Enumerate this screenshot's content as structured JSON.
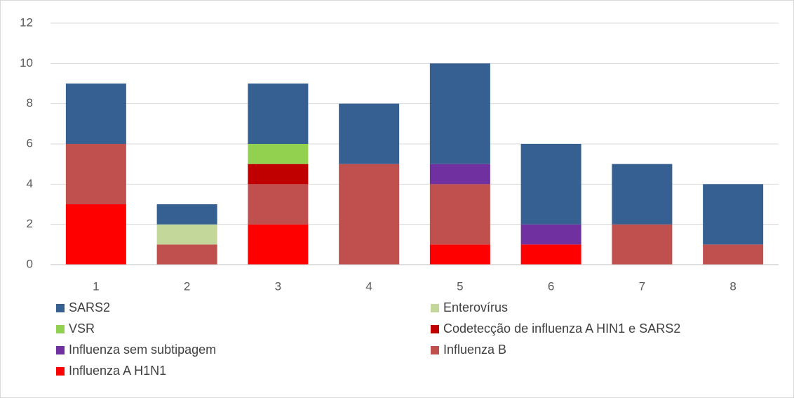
{
  "chart_data": {
    "type": "stacked_bar",
    "categories": [
      "1",
      "2",
      "3",
      "4",
      "5",
      "6",
      "7",
      "8"
    ],
    "series": [
      {
        "name": "Influenza A H1N1",
        "color": "#ff0000",
        "values": [
          3,
          0,
          2,
          0,
          1,
          1,
          0,
          0
        ]
      },
      {
        "name": "Influenza B",
        "color": "#c0504d",
        "values": [
          3,
          1,
          2,
          5,
          3,
          0,
          2,
          1
        ]
      },
      {
        "name": "Influenza sem subtipagem",
        "color": "#7030a0",
        "values": [
          0,
          0,
          0,
          0,
          1,
          1,
          0,
          0
        ]
      },
      {
        "name": "Codetecção de influenza A HIN1 e SARS2",
        "color": "#c00000",
        "values": [
          0,
          0,
          1,
          0,
          0,
          0,
          0,
          0
        ]
      },
      {
        "name": "VSR",
        "color": "#92d050",
        "values": [
          0,
          0,
          1,
          0,
          0,
          0,
          0,
          0
        ]
      },
      {
        "name": "Enterovírus",
        "color": "#c4d79b",
        "values": [
          0,
          1,
          0,
          0,
          0,
          0,
          0,
          0
        ]
      },
      {
        "name": "SARS2",
        "color": "#366092",
        "values": [
          3,
          1,
          3,
          3,
          5,
          4,
          3,
          3
        ]
      }
    ],
    "ylim": [
      0,
      12
    ],
    "yticks": [
      0,
      2,
      4,
      6,
      8,
      10,
      12
    ],
    "grid": true,
    "legend": "bottom"
  }
}
